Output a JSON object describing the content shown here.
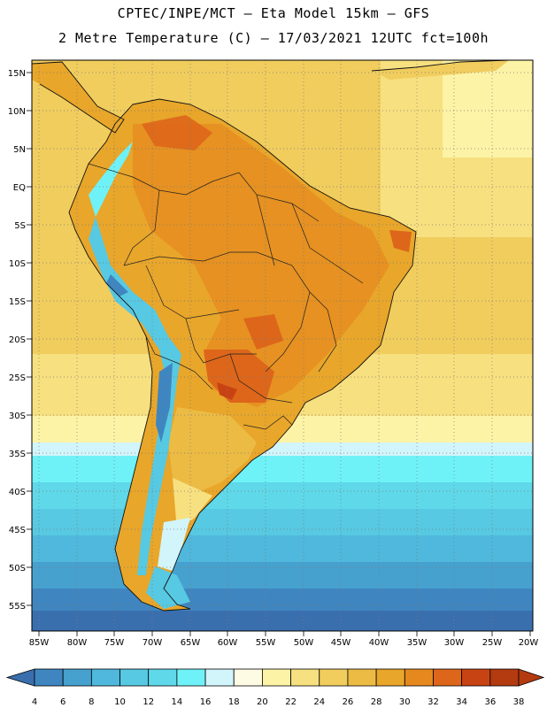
{
  "header": {
    "line1": "CPTEC/INPE/MCT –  Eta Model 15km – GFS",
    "line2": "2 Metre Temperature (C) – 17/03/2021 12UTC fct=100h"
  },
  "axes": {
    "lat_labels": [
      "15N",
      "10N",
      "5N",
      "EQ",
      "5S",
      "10S",
      "15S",
      "20S",
      "25S",
      "30S",
      "35S",
      "40S",
      "45S",
      "50S",
      "55S"
    ],
    "lon_labels": [
      "85W",
      "80W",
      "75W",
      "70W",
      "65W",
      "60W",
      "55W",
      "50W",
      "45W",
      "40W",
      "35W",
      "30W",
      "25W",
      "20W"
    ]
  },
  "colorbar": {
    "labels": [
      "4",
      "6",
      "8",
      "10",
      "12",
      "14",
      "16",
      "18",
      "20",
      "22",
      "24",
      "26",
      "28",
      "30",
      "32",
      "34",
      "36",
      "38"
    ],
    "colors": [
      "#3a6fae",
      "#3f86c0",
      "#46a1cf",
      "#4fb8dc",
      "#57c9e2",
      "#5fd9e9",
      "#6ff2f7",
      "#d2f5fb",
      "#fefbe4",
      "#fcf3a6",
      "#f7e07f",
      "#f1cd5e",
      "#ecbb44",
      "#e8a62a",
      "#e5891f",
      "#dd661a",
      "#c84313",
      "#b43a10"
    ]
  },
  "chart_data": {
    "type": "heatmap",
    "title": "2 Metre Temperature (C) – 17/03/2021 12UTC fct=100h",
    "model": "Eta Model 15km – GFS",
    "variable": "2 Metre Temperature",
    "units": "C",
    "lat_range": [
      "57S",
      "17N"
    ],
    "lon_range": [
      "86W",
      "20W"
    ],
    "levels": [
      4,
      6,
      8,
      10,
      12,
      14,
      16,
      18,
      20,
      22,
      24,
      26,
      28,
      30,
      32,
      34,
      36,
      38
    ]
  }
}
